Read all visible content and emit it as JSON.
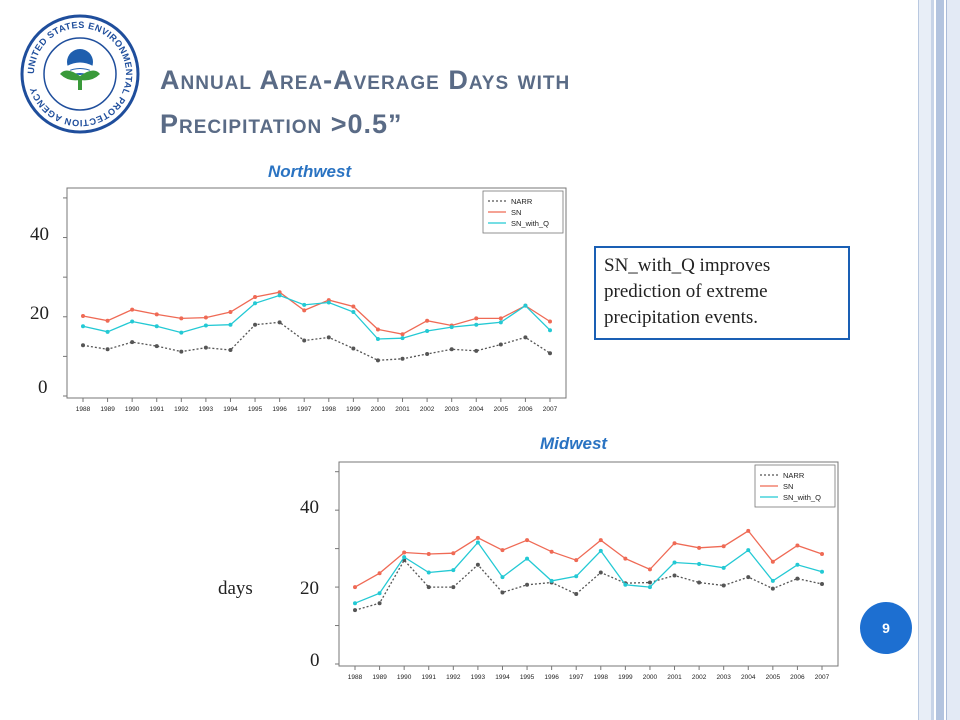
{
  "slide": {
    "title_line1": "Annual Area-Average Days with",
    "title_line2": "Precipitation >0.5”",
    "note": "SN_with_Q improves prediction of extreme precipitation events.",
    "page_number": "9",
    "days_label": "days",
    "logo_text": "UNITED STATES ENVIRONMENTAL PROTECTION AGENCY",
    "big_ticks": [
      "40",
      "20",
      "0"
    ]
  },
  "colors": {
    "NARR": "#555555",
    "SN": "#ef6a55",
    "SN_with_Q": "#23c9d4",
    "title": "#5a6b86",
    "plot_title": "#2a73c2",
    "badge": "#1d6fd1"
  },
  "chart_data": [
    {
      "type": "line",
      "title": "Northwest",
      "x": [
        "1988",
        "1989",
        "1990",
        "1991",
        "1992",
        "1993",
        "1994",
        "1995",
        "1996",
        "1997",
        "1998",
        "1999",
        "2000",
        "2001",
        "2002",
        "2003",
        "2004",
        "2005",
        "2006",
        "2007"
      ],
      "ylim": [
        0,
        52
      ],
      "yticks": [
        0,
        20,
        40
      ],
      "grid": false,
      "legend": "top-right",
      "series": [
        {
          "name": "NARR",
          "values": [
            12.8,
            11.8,
            13.6,
            12.6,
            11.2,
            12.2,
            11.6,
            18.0,
            18.6,
            14.0,
            14.8,
            12.0,
            9.0,
            9.4,
            10.6,
            11.8,
            11.4,
            13.0,
            14.8,
            10.8
          ]
        },
        {
          "name": "SN",
          "values": [
            20.2,
            19.0,
            21.8,
            20.6,
            19.6,
            19.8,
            21.2,
            25.0,
            26.2,
            21.6,
            24.2,
            22.6,
            16.8,
            15.6,
            19.0,
            17.8,
            19.6,
            19.6,
            22.8,
            18.8
          ]
        },
        {
          "name": "SN_with_Q",
          "values": [
            17.6,
            16.2,
            18.8,
            17.6,
            16.0,
            17.8,
            18.0,
            23.4,
            25.4,
            23.0,
            23.6,
            21.2,
            14.4,
            14.6,
            16.4,
            17.4,
            18.0,
            18.6,
            22.8,
            16.6
          ]
        }
      ]
    },
    {
      "type": "line",
      "title": "Midwest",
      "x": [
        "1988",
        "1989",
        "1990",
        "1991",
        "1992",
        "1993",
        "1994",
        "1995",
        "1996",
        "1997",
        "1998",
        "1999",
        "2000",
        "2001",
        "2002",
        "2003",
        "2004",
        "2005",
        "2006",
        "2007"
      ],
      "ylim": [
        0,
        52
      ],
      "yticks": [
        0,
        20,
        40
      ],
      "grid": false,
      "legend": "top-right",
      "series": [
        {
          "name": "NARR",
          "values": [
            14.0,
            15.8,
            27.0,
            20.0,
            20.0,
            25.8,
            18.6,
            20.6,
            21.2,
            18.2,
            23.8,
            21.0,
            21.2,
            23.0,
            21.2,
            20.4,
            22.6,
            19.6,
            22.2,
            20.8
          ]
        },
        {
          "name": "SN",
          "values": [
            20.0,
            23.6,
            29.0,
            28.6,
            28.8,
            32.8,
            29.6,
            32.2,
            29.2,
            27.0,
            32.2,
            27.4,
            24.6,
            31.4,
            30.2,
            30.6,
            34.6,
            26.6,
            30.8,
            28.6
          ]
        },
        {
          "name": "SN_with_Q",
          "values": [
            15.8,
            18.4,
            27.8,
            23.8,
            24.4,
            31.6,
            22.6,
            27.4,
            21.6,
            22.8,
            29.4,
            20.6,
            20.0,
            26.4,
            26.0,
            25.0,
            29.6,
            21.6,
            25.8,
            24.0
          ]
        }
      ]
    }
  ]
}
